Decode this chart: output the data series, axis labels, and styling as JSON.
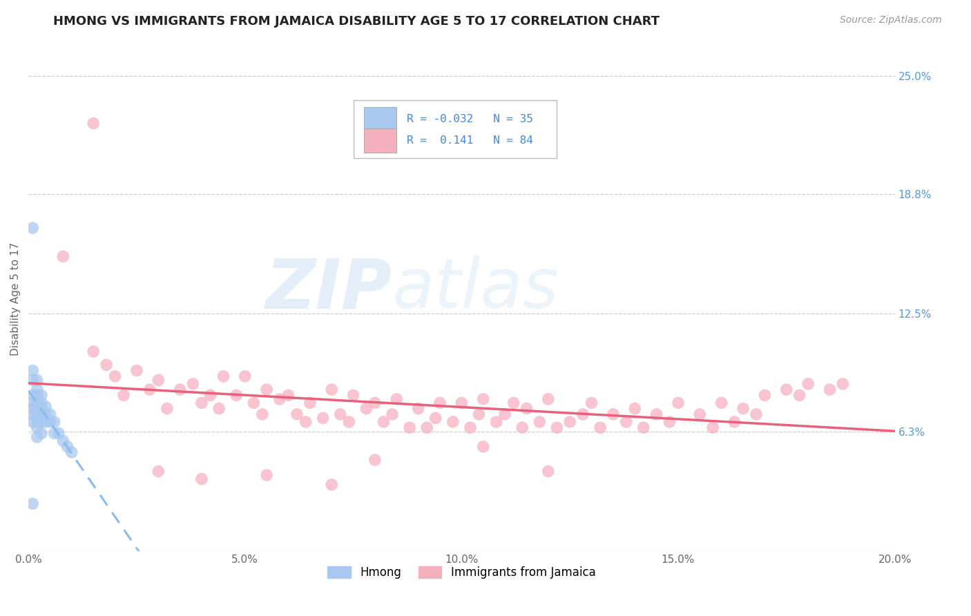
{
  "title": "HMONG VS IMMIGRANTS FROM JAMAICA DISABILITY AGE 5 TO 17 CORRELATION CHART",
  "source_text": "Source: ZipAtlas.com",
  "ylabel": "Disability Age 5 to 17",
  "xlim": [
    0.0,
    0.2
  ],
  "ylim": [
    0.0,
    0.265
  ],
  "xticks": [
    0.0,
    0.05,
    0.1,
    0.15,
    0.2
  ],
  "xticklabels": [
    "0.0%",
    "5.0%",
    "10.0%",
    "15.0%",
    "20.0%"
  ],
  "yticks_right": [
    0.0,
    0.063,
    0.125,
    0.188,
    0.25
  ],
  "yticklabels_right": [
    "",
    "6.3%",
    "12.5%",
    "18.8%",
    "25.0%"
  ],
  "hmong_color": "#a8c8f0",
  "jamaica_color": "#f5b0c0",
  "trend_hmong_color": "#88bbee",
  "trend_jamaica_color": "#e8607a",
  "R_hmong": -0.032,
  "N_hmong": 35,
  "R_jamaica": 0.141,
  "N_jamaica": 84,
  "legend_label_hmong": "Hmong",
  "legend_label_jamaica": "Immigrants from Jamaica",
  "watermark_line1": "ZIP",
  "watermark_line2": "atlas",
  "background_color": "#ffffff",
  "grid_color": "#cccccc",
  "hmong_x": [
    0.001,
    0.001,
    0.001,
    0.001,
    0.001,
    0.001,
    0.001,
    0.001,
    0.002,
    0.002,
    0.002,
    0.002,
    0.002,
    0.002,
    0.002,
    0.002,
    0.002,
    0.003,
    0.003,
    0.003,
    0.003,
    0.003,
    0.003,
    0.004,
    0.004,
    0.004,
    0.005,
    0.005,
    0.006,
    0.006,
    0.007,
    0.008,
    0.009,
    0.01,
    0.001
  ],
  "hmong_y": [
    0.17,
    0.095,
    0.09,
    0.082,
    0.078,
    0.075,
    0.072,
    0.068,
    0.09,
    0.085,
    0.082,
    0.078,
    0.075,
    0.072,
    0.068,
    0.065,
    0.06,
    0.082,
    0.078,
    0.075,
    0.072,
    0.068,
    0.062,
    0.076,
    0.072,
    0.068,
    0.072,
    0.068,
    0.068,
    0.062,
    0.062,
    0.058,
    0.055,
    0.052,
    0.025
  ],
  "jamaica_x": [
    0.008,
    0.015,
    0.018,
    0.02,
    0.022,
    0.025,
    0.028,
    0.03,
    0.032,
    0.035,
    0.038,
    0.04,
    0.042,
    0.044,
    0.045,
    0.048,
    0.05,
    0.052,
    0.054,
    0.055,
    0.058,
    0.06,
    0.062,
    0.064,
    0.065,
    0.068,
    0.07,
    0.072,
    0.074,
    0.075,
    0.078,
    0.08,
    0.082,
    0.084,
    0.085,
    0.088,
    0.09,
    0.092,
    0.094,
    0.095,
    0.098,
    0.1,
    0.102,
    0.104,
    0.105,
    0.108,
    0.11,
    0.112,
    0.114,
    0.115,
    0.118,
    0.12,
    0.122,
    0.125,
    0.128,
    0.13,
    0.132,
    0.135,
    0.138,
    0.14,
    0.142,
    0.145,
    0.148,
    0.15,
    0.155,
    0.158,
    0.16,
    0.163,
    0.165,
    0.168,
    0.17,
    0.175,
    0.178,
    0.18,
    0.185,
    0.188,
    0.03,
    0.055,
    0.08,
    0.105,
    0.015,
    0.04,
    0.07,
    0.12
  ],
  "jamaica_y": [
    0.155,
    0.105,
    0.098,
    0.092,
    0.082,
    0.095,
    0.085,
    0.09,
    0.075,
    0.085,
    0.088,
    0.078,
    0.082,
    0.075,
    0.092,
    0.082,
    0.092,
    0.078,
    0.072,
    0.085,
    0.08,
    0.082,
    0.072,
    0.068,
    0.078,
    0.07,
    0.085,
    0.072,
    0.068,
    0.082,
    0.075,
    0.078,
    0.068,
    0.072,
    0.08,
    0.065,
    0.075,
    0.065,
    0.07,
    0.078,
    0.068,
    0.078,
    0.065,
    0.072,
    0.08,
    0.068,
    0.072,
    0.078,
    0.065,
    0.075,
    0.068,
    0.08,
    0.065,
    0.068,
    0.072,
    0.078,
    0.065,
    0.072,
    0.068,
    0.075,
    0.065,
    0.072,
    0.068,
    0.078,
    0.072,
    0.065,
    0.078,
    0.068,
    0.075,
    0.072,
    0.082,
    0.085,
    0.082,
    0.088,
    0.085,
    0.088,
    0.042,
    0.04,
    0.048,
    0.055,
    0.225,
    0.038,
    0.035,
    0.042
  ]
}
